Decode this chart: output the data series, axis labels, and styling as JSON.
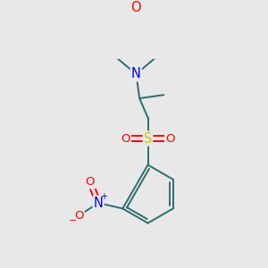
{
  "background_color": "#e8e8e8",
  "bond_color": "#2d6e6e",
  "atom_colors": {
    "O": "#ff0000",
    "N": "#0000ff",
    "S": "#cccc00",
    "C": "#2d6e6e"
  },
  "figsize": [
    3.0,
    3.0
  ],
  "dpi": 100,
  "lw": 1.4,
  "font_size": 9.5
}
